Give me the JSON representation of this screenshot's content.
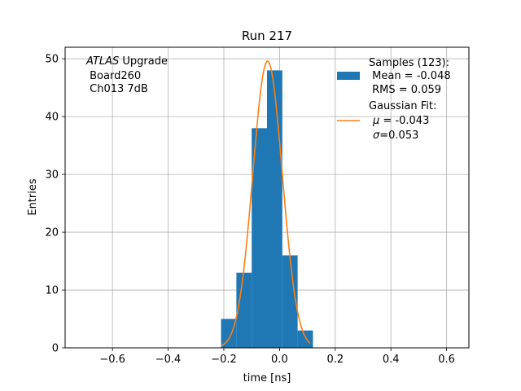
{
  "chart_data": {
    "type": "bar",
    "title": "Run 217",
    "xlabel": "time [ns]",
    "ylabel": "Entries",
    "xlim": [
      -0.77,
      0.68
    ],
    "ylim": [
      0,
      52
    ],
    "grid": true,
    "xticks": [
      -0.6,
      -0.4,
      -0.2,
      0.0,
      0.2,
      0.4,
      0.6
    ],
    "xtick_labels": [
      "−0.6",
      "−0.4",
      "−0.2",
      "0.0",
      "0.2",
      "0.4",
      "0.6"
    ],
    "yticks": [
      0,
      10,
      20,
      30,
      40,
      50
    ],
    "ytick_labels": [
      "0",
      "10",
      "20",
      "30",
      "40",
      "50"
    ],
    "annotation": {
      "italic_part": "ATLAS",
      "rest_line1": " Upgrade",
      "line2": " Board260",
      "line3": " Ch013 7dB"
    },
    "histogram": {
      "color": "#1f77b4",
      "bin_edges": [
        -0.21,
        -0.155,
        -0.1,
        -0.045,
        0.01,
        0.065,
        0.12
      ],
      "counts": [
        5,
        13,
        38,
        48,
        16,
        3
      ]
    },
    "fit": {
      "color": "#ff7f0e",
      "mu": -0.043,
      "sigma": 0.053,
      "amplitude": 49.6,
      "range": [
        -0.21,
        0.11
      ]
    },
    "legend": {
      "position": "top-right",
      "samples_lines": [
        "Samples (123):",
        " Mean = -0.048",
        " RMS = 0.059"
      ],
      "fit_line1": "Gaussian Fit:",
      "fit_mu_symbol": "μ",
      "fit_mu_text": " = -0.043",
      "fit_sigma_symbol": "σ",
      "fit_sigma_text": "=0.053"
    }
  }
}
